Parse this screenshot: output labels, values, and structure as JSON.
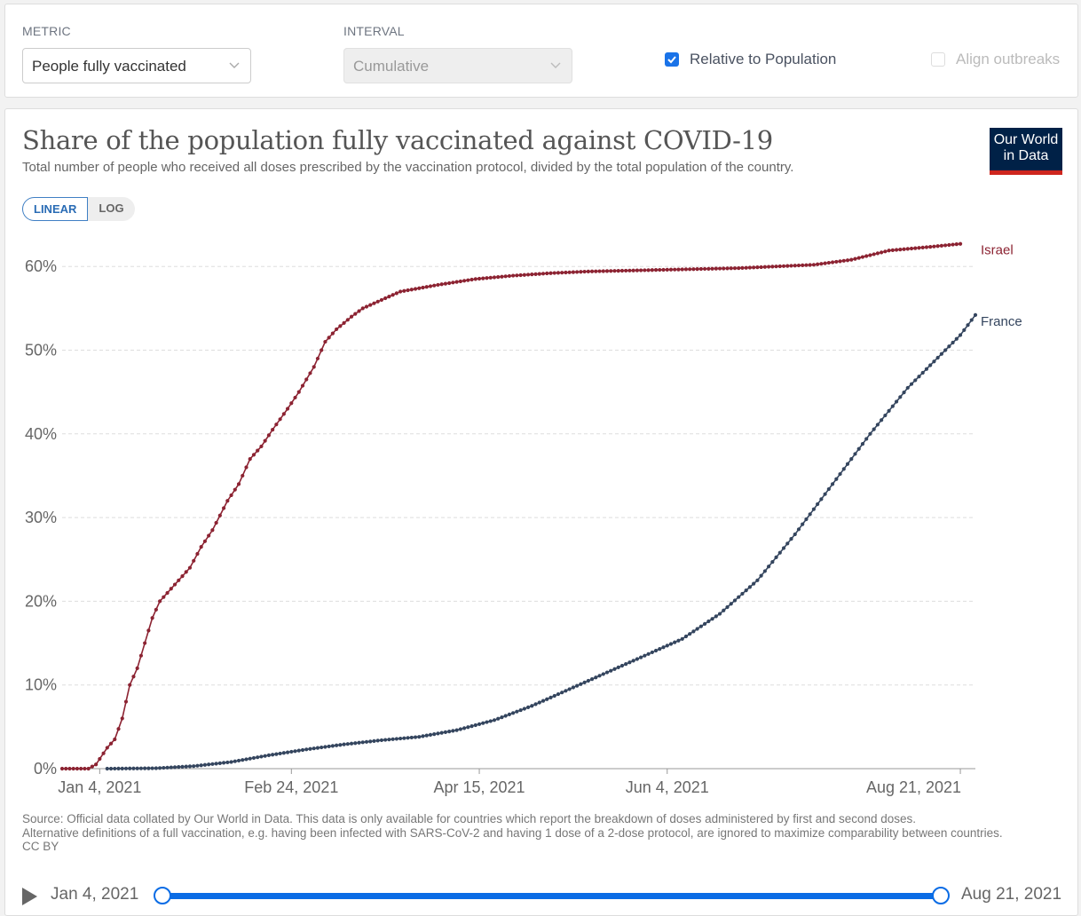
{
  "controls": {
    "metric_label": "METRIC",
    "metric_value": "People fully vaccinated",
    "interval_label": "INTERVAL",
    "interval_value": "Cumulative",
    "relative_label": "Relative to Population",
    "relative_checked": true,
    "align_label": "Align outbreaks",
    "align_checked": false
  },
  "header": {
    "title": "Share of the population fully vaccinated against COVID-19",
    "subtitle": "Total number of people who received all doses prescribed by the vaccination protocol, divided by the total population of the country.",
    "logo_line1": "Our World",
    "logo_line2": "in Data"
  },
  "scale": {
    "linear": "LINEAR",
    "log": "LOG",
    "active": "LINEAR"
  },
  "chart_data": {
    "type": "line",
    "title": "Share of the population fully vaccinated against COVID-19",
    "xlabel": "",
    "ylabel": "",
    "x_start": "2020-12-25",
    "x_end": "2021-08-21",
    "xticks": [
      "Jan 4, 2021",
      "Feb 24, 2021",
      "Apr 15, 2021",
      "Jun 4, 2021",
      "Aug 21, 2021"
    ],
    "xtick_days": [
      10,
      61,
      111,
      161,
      239
    ],
    "yticks": [
      "0%",
      "10%",
      "20%",
      "30%",
      "40%",
      "50%",
      "60%"
    ],
    "ylim": [
      0,
      63
    ],
    "grid": true,
    "legend": "inline-right",
    "series": [
      {
        "name": "Israel",
        "color": "#8c2332",
        "start_day": 0,
        "keypoints": [
          [
            0,
            0
          ],
          [
            7,
            0
          ],
          [
            9,
            0.5
          ],
          [
            12,
            2.5
          ],
          [
            14,
            3.5
          ],
          [
            16,
            6
          ],
          [
            18,
            10
          ],
          [
            20,
            12
          ],
          [
            22,
            15
          ],
          [
            24,
            18
          ],
          [
            26,
            20
          ],
          [
            30,
            22
          ],
          [
            34,
            24
          ],
          [
            37,
            26.5
          ],
          [
            40,
            28.5
          ],
          [
            44,
            32
          ],
          [
            47,
            34
          ],
          [
            50,
            37
          ],
          [
            53,
            38.5
          ],
          [
            56,
            40.5
          ],
          [
            60,
            43
          ],
          [
            63,
            45
          ],
          [
            67,
            48
          ],
          [
            70,
            51
          ],
          [
            73,
            52.5
          ],
          [
            77,
            54
          ],
          [
            80,
            55
          ],
          [
            85,
            56
          ],
          [
            90,
            57
          ],
          [
            100,
            57.8
          ],
          [
            110,
            58.5
          ],
          [
            120,
            58.9
          ],
          [
            130,
            59.2
          ],
          [
            140,
            59.4
          ],
          [
            160,
            59.6
          ],
          [
            180,
            59.8
          ],
          [
            200,
            60.2
          ],
          [
            210,
            60.8
          ],
          [
            220,
            61.9
          ],
          [
            230,
            62.3
          ],
          [
            239,
            62.7
          ]
        ]
      },
      {
        "name": "France",
        "color": "#34455e",
        "start_day": 12,
        "keypoints": [
          [
            12,
            0
          ],
          [
            25,
            0.05
          ],
          [
            35,
            0.3
          ],
          [
            45,
            0.8
          ],
          [
            55,
            1.6
          ],
          [
            65,
            2.3
          ],
          [
            75,
            2.9
          ],
          [
            85,
            3.4
          ],
          [
            95,
            3.8
          ],
          [
            105,
            4.6
          ],
          [
            115,
            5.8
          ],
          [
            125,
            7.5
          ],
          [
            135,
            9.5
          ],
          [
            145,
            11.5
          ],
          [
            155,
            13.5
          ],
          [
            165,
            15.5
          ],
          [
            175,
            18.5
          ],
          [
            185,
            22.5
          ],
          [
            195,
            28
          ],
          [
            205,
            34
          ],
          [
            215,
            40
          ],
          [
            225,
            45.5
          ],
          [
            235,
            50
          ],
          [
            239,
            51.8
          ],
          [
            243,
            54.2
          ]
        ]
      }
    ]
  },
  "source": {
    "line1": "Source: Official data collated by Our World in Data. This data is only available for countries which report the breakdown of doses administered by first and second doses.",
    "line2": "Alternative definitions of a full vaccination, e.g. having been infected with SARS-CoV-2 and having 1 dose of a 2-dose protocol, are ignored to maximize comparability between countries.",
    "license": "CC BY"
  },
  "timeline": {
    "start": "Jan 4, 2021",
    "end": "Aug 21, 2021"
  }
}
